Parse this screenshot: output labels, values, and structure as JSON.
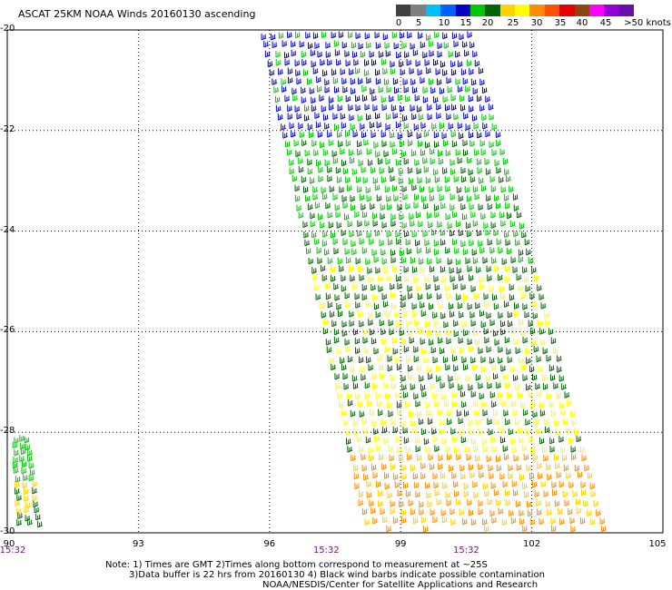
{
  "title": "ASCAT 25KM NOAA Winds 20160130 ascending",
  "legend": {
    "colors": [
      "#404040",
      "#7f7f7f",
      "#00bfff",
      "#0060ff",
      "#0000c8",
      "#00c800",
      "#006400",
      "#ffd200",
      "#ffff00",
      "#ff8c00",
      "#ff5000",
      "#e60000",
      "#8b4513",
      "#ff00ff",
      "#9400d3",
      "#6a0dad"
    ],
    "ticks": [
      "0",
      "5",
      "10",
      "15",
      "20",
      "25",
      "30",
      "35",
      "40",
      "45",
      ">50 knots"
    ]
  },
  "axes": {
    "lat_labels": [
      "-20",
      "-22",
      "-24",
      "-26",
      "-28",
      "-30"
    ],
    "lat_values": [
      -20,
      -22,
      -24,
      -26,
      -28,
      -30
    ],
    "lon_labels": [
      "90",
      "93",
      "96",
      "99",
      "102",
      "105"
    ],
    "lon_values": [
      90,
      93,
      96,
      99,
      102,
      105
    ],
    "lat_range": [
      -30,
      -20
    ],
    "lon_range": [
      90,
      105
    ],
    "grid": "dotted"
  },
  "pass_times": [
    {
      "label": "15:32",
      "lon": 90
    },
    {
      "label": "15:32",
      "lon": 97.3
    },
    {
      "label": "15:32",
      "lon": 100.5
    }
  ],
  "swaths": [
    {
      "name": "main",
      "corners_lonlat": [
        [
          95.8,
          -20
        ],
        [
          100.5,
          -20
        ],
        [
          103.6,
          -30
        ],
        [
          98.2,
          -30
        ]
      ]
    },
    {
      "name": "edge",
      "corners_lonlat": [
        [
          90,
          -28.2
        ],
        [
          90.4,
          -28.2
        ],
        [
          90.7,
          -30
        ],
        [
          90,
          -30
        ]
      ]
    }
  ],
  "speed_bands": [
    {
      "lat_from": -20,
      "lat_to": -22.2,
      "color": "#0000c8",
      "mix": "#00c800"
    },
    {
      "lat_from": -22.2,
      "lat_to": -24.8,
      "color": "#00c800",
      "mix": "#006400"
    },
    {
      "lat_from": -24.8,
      "lat_to": -27.3,
      "color": "#006400",
      "mix": "#ffff00"
    },
    {
      "lat_from": -27.3,
      "lat_to": -28.5,
      "color": "#ffff00",
      "mix": "#006400"
    },
    {
      "lat_from": -28.5,
      "lat_to": -30,
      "color": "#ff8c00",
      "mix": "#ffd200"
    }
  ],
  "notes": {
    "line1": "Note: 1) Times are GMT 2)Times along bottom correspond to measurement at ~25S",
    "line2": "3)Data buffer is 22 hrs from 20160130 4) Black wind barbs indicate possible contamination",
    "line3": "NOAA/NESDIS/Center for Satellite Applications and Research"
  }
}
